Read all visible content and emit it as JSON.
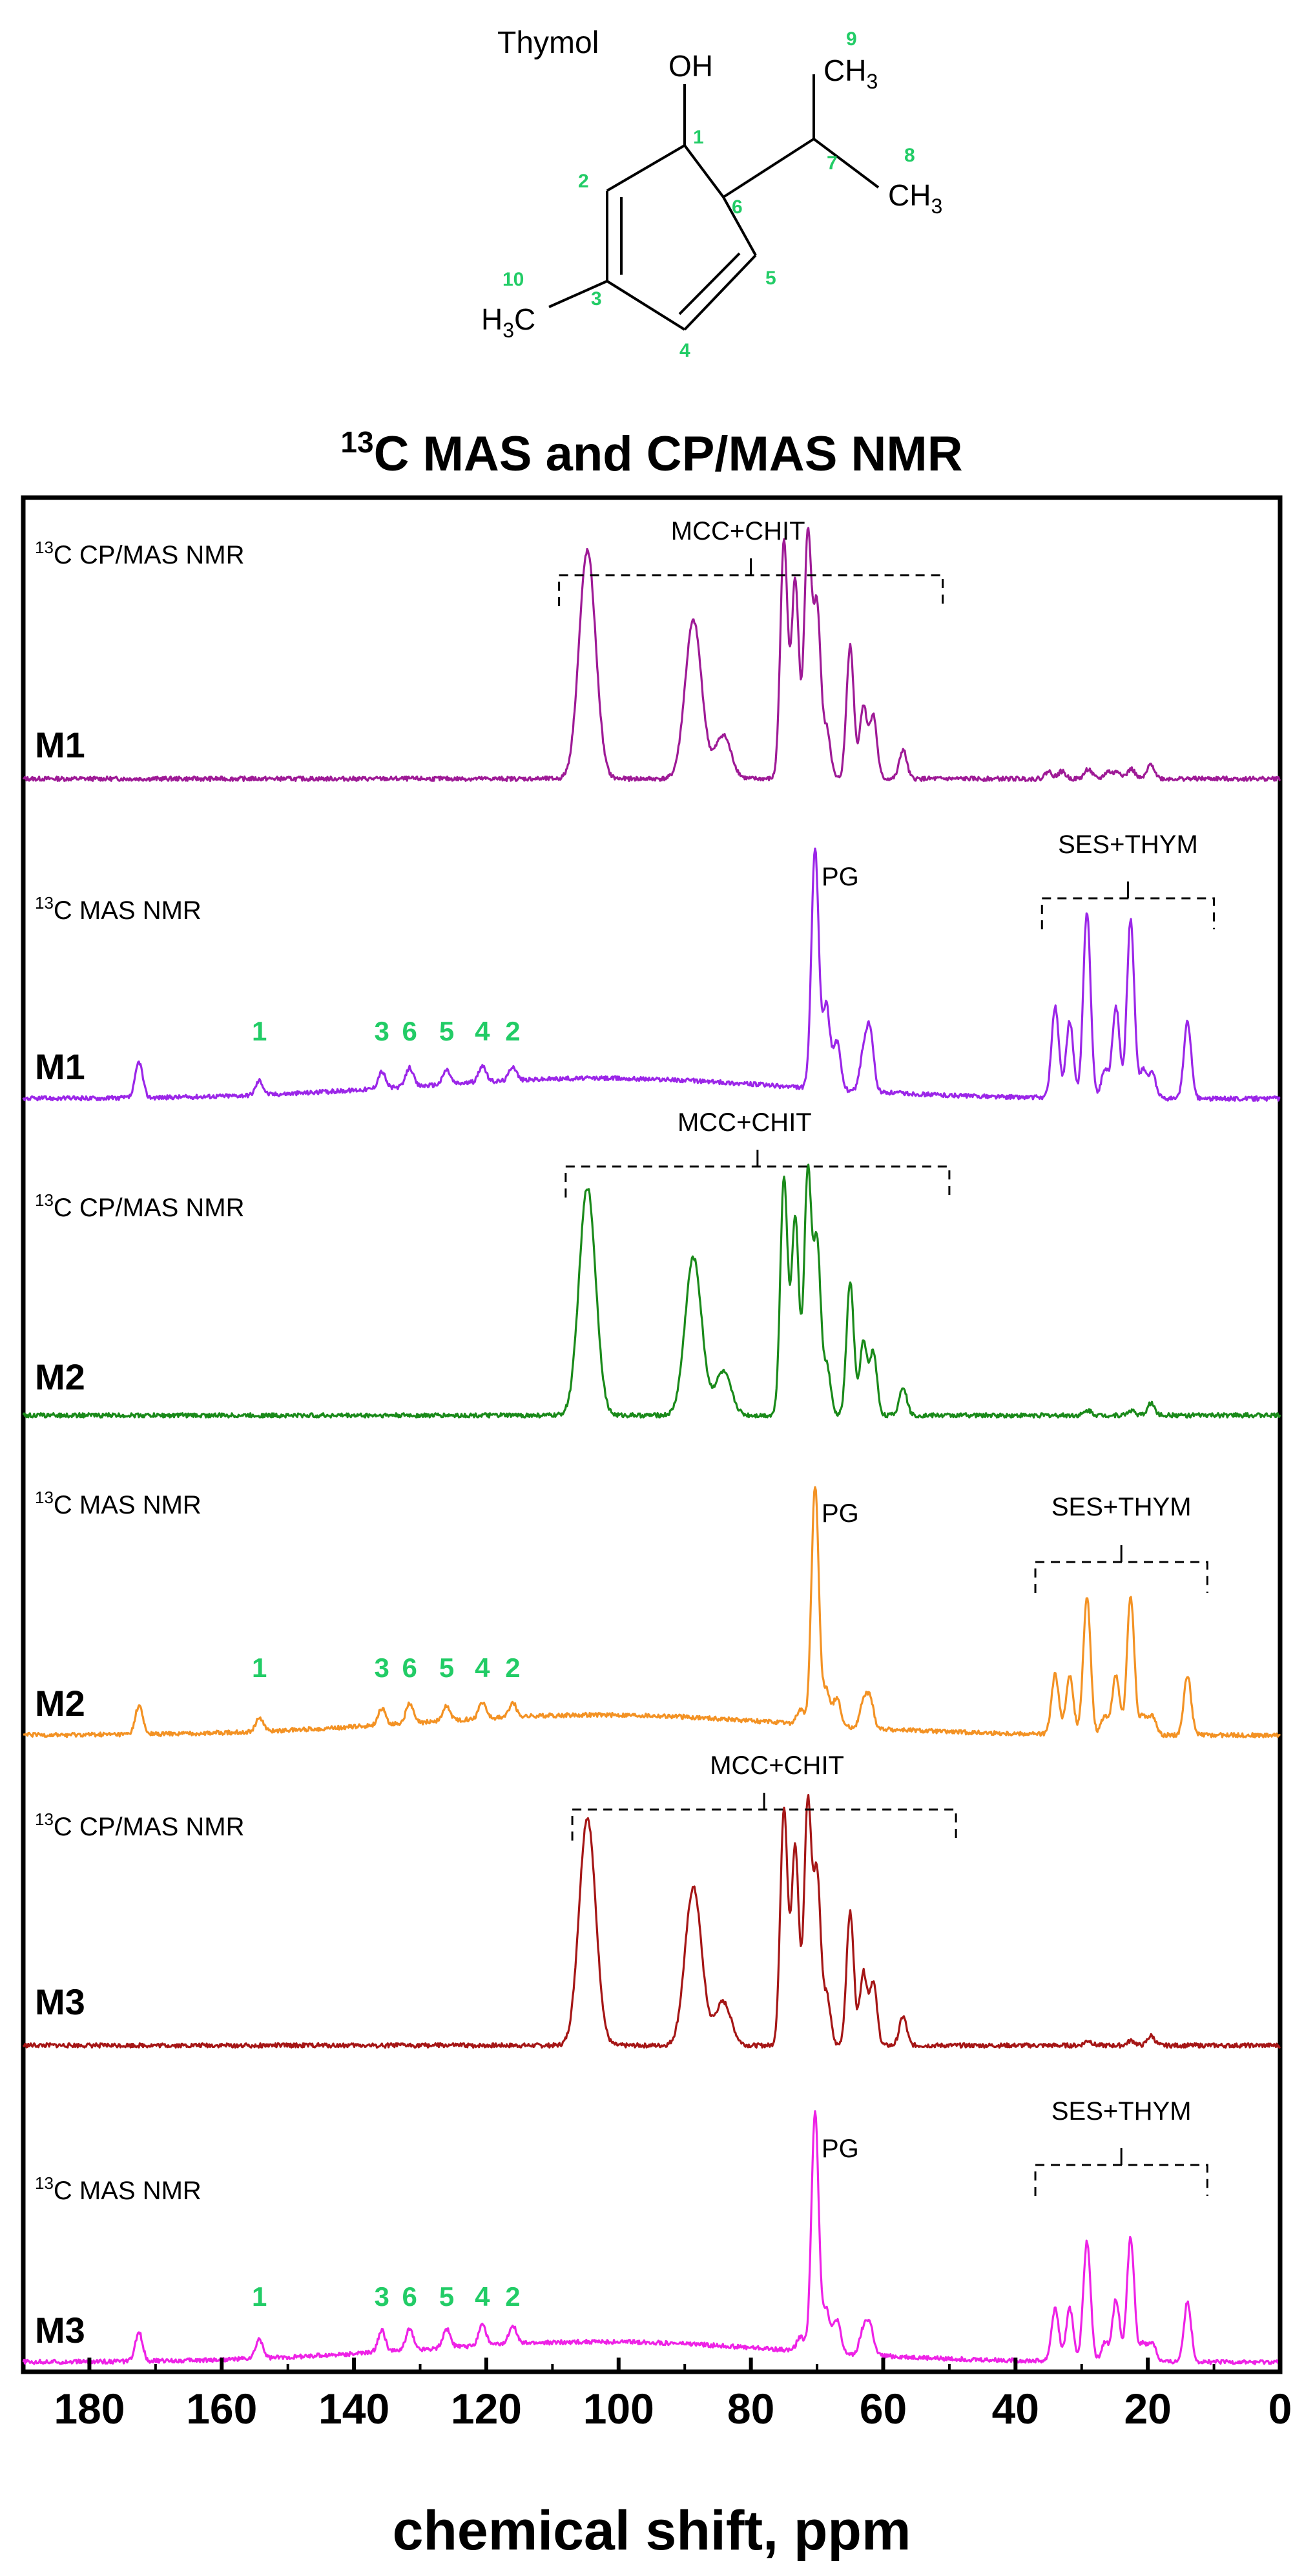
{
  "molecule": {
    "name": "Thymol",
    "oh_label": "OH",
    "ch3_label": "CH",
    "ch3_sub": "3",
    "h3c_main": "H",
    "h3c_sub": "3",
    "h3c_tail": "C",
    "atom_numbers": [
      "1",
      "2",
      "3",
      "4",
      "5",
      "6",
      "7",
      "8",
      "9",
      "10"
    ]
  },
  "title": {
    "sup": "13",
    "main": "C MAS and CP/MAS NMR"
  },
  "colors": {
    "M1_cp": "#9e1a96",
    "M1_mas": "#9b26e8",
    "M2_cp": "#1a8a1a",
    "M2_mas": "#f39224",
    "M3_cp": "#a51616",
    "M3_mas": "#ee22e6",
    "atom_label": "#22cc66"
  },
  "chart_data": {
    "type": "line",
    "title": "13C MAS and CP/MAS NMR",
    "xlabel": "chemical shift, ppm",
    "xlim": [
      190,
      0
    ],
    "x_reversed": true,
    "x_ticks": [
      180,
      160,
      140,
      120,
      100,
      80,
      60,
      40,
      20,
      0
    ],
    "x_tick_labels": [
      "180",
      "160",
      "140",
      "120",
      "100",
      "80",
      "60",
      "40",
      "20",
      "0"
    ],
    "panels": [
      {
        "id": "M1_cp",
        "sample": "M1",
        "method_sup": "13",
        "method": "C CP/MAS NMR",
        "bracket": {
          "label": "MCC+CHIT",
          "from": 109,
          "to": 51
        },
        "peaks": [
          [
            105.0,
            0.58
          ],
          [
            104.3,
            0.4
          ],
          [
            89.0,
            0.38
          ],
          [
            88.3,
            0.3
          ],
          [
            84.2,
            0.18
          ],
          [
            75.0,
            0.98
          ],
          [
            73.3,
            0.82
          ],
          [
            71.4,
            1.0
          ],
          [
            70.0,
            0.7
          ],
          [
            68.5,
            0.2
          ],
          [
            65.0,
            0.55
          ],
          [
            63.0,
            0.3
          ],
          [
            61.5,
            0.26
          ],
          [
            57.0,
            0.12
          ],
          [
            35.0,
            0.03
          ],
          [
            33.0,
            0.03
          ],
          [
            29.0,
            0.04
          ],
          [
            26.0,
            0.03
          ],
          [
            24.5,
            0.03
          ],
          [
            22.5,
            0.04
          ],
          [
            19.5,
            0.06
          ]
        ]
      },
      {
        "id": "M1_mas",
        "sample": "M1",
        "method_sup": "13",
        "method": "C MAS NMR",
        "bracket": {
          "label": "SES+THYM",
          "from": 36,
          "to": 10
        },
        "pg_label": "PG",
        "atom_labels": [
          {
            "num": "1",
            "ppm": 154.3
          },
          {
            "num": "3",
            "ppm": 135.8
          },
          {
            "num": "6",
            "ppm": 131.6
          },
          {
            "num": "5",
            "ppm": 126.0
          },
          {
            "num": "4",
            "ppm": 120.6
          },
          {
            "num": "2",
            "ppm": 116.0
          }
        ],
        "peaks": [
          [
            172.5,
            0.15
          ],
          [
            154.3,
            0.06
          ],
          [
            135.8,
            0.07
          ],
          [
            131.6,
            0.08
          ],
          [
            126.0,
            0.06
          ],
          [
            120.6,
            0.07
          ],
          [
            116.0,
            0.06
          ],
          [
            70.3,
            1.0
          ],
          [
            68.6,
            0.35
          ],
          [
            67.0,
            0.2
          ],
          [
            63.0,
            0.15
          ],
          [
            62.0,
            0.25
          ],
          [
            34.0,
            0.38
          ],
          [
            31.8,
            0.32
          ],
          [
            29.2,
            0.78
          ],
          [
            26.5,
            0.12
          ],
          [
            24.8,
            0.38
          ],
          [
            22.6,
            0.75
          ],
          [
            20.7,
            0.12
          ],
          [
            19.3,
            0.1
          ],
          [
            14.0,
            0.32
          ]
        ]
      },
      {
        "id": "M2_cp",
        "sample": "M2",
        "method_sup": "13",
        "method": "C CP/MAS NMR",
        "bracket": {
          "label": "MCC+CHIT",
          "from": 108,
          "to": 50
        },
        "peaks": [
          [
            105.0,
            0.58
          ],
          [
            104.3,
            0.4
          ],
          [
            89.0,
            0.38
          ],
          [
            88.3,
            0.3
          ],
          [
            84.2,
            0.18
          ],
          [
            75.0,
            0.98
          ],
          [
            73.3,
            0.82
          ],
          [
            71.4,
            1.0
          ],
          [
            70.0,
            0.7
          ],
          [
            68.5,
            0.2
          ],
          [
            65.0,
            0.55
          ],
          [
            63.0,
            0.3
          ],
          [
            61.5,
            0.26
          ],
          [
            57.0,
            0.12
          ],
          [
            29.0,
            0.02
          ],
          [
            22.5,
            0.02
          ],
          [
            19.5,
            0.05
          ]
        ]
      },
      {
        "id": "M2_mas",
        "sample": "M2",
        "method_sup": "13",
        "method": "C MAS NMR",
        "bracket": {
          "label": "SES+THYM",
          "from": 37,
          "to": 11
        },
        "pg_label": "PG",
        "atom_labels": [
          {
            "num": "1",
            "ppm": 154.3
          },
          {
            "num": "3",
            "ppm": 135.8
          },
          {
            "num": "6",
            "ppm": 131.6
          },
          {
            "num": "5",
            "ppm": 126.0
          },
          {
            "num": "4",
            "ppm": 120.6
          },
          {
            "num": "2",
            "ppm": 116.0
          }
        ],
        "peaks": [
          [
            172.5,
            0.12
          ],
          [
            154.3,
            0.06
          ],
          [
            135.8,
            0.07
          ],
          [
            131.6,
            0.08
          ],
          [
            126.0,
            0.06
          ],
          [
            120.6,
            0.07
          ],
          [
            116.0,
            0.06
          ],
          [
            72.5,
            0.06
          ],
          [
            70.3,
            1.0
          ],
          [
            68.6,
            0.15
          ],
          [
            67.0,
            0.12
          ],
          [
            63.0,
            0.1
          ],
          [
            62.0,
            0.12
          ],
          [
            34.0,
            0.25
          ],
          [
            31.8,
            0.25
          ],
          [
            29.2,
            0.58
          ],
          [
            26.5,
            0.08
          ],
          [
            24.8,
            0.25
          ],
          [
            22.6,
            0.58
          ],
          [
            20.7,
            0.08
          ],
          [
            19.3,
            0.08
          ],
          [
            14.0,
            0.25
          ]
        ]
      },
      {
        "id": "M3_cp",
        "sample": "M3",
        "method_sup": "13",
        "method": "C CP/MAS NMR",
        "bracket": {
          "label": "MCC+CHIT",
          "from": 107,
          "to": 49
        },
        "peaks": [
          [
            105.0,
            0.58
          ],
          [
            104.3,
            0.4
          ],
          [
            89.0,
            0.38
          ],
          [
            88.3,
            0.3
          ],
          [
            84.2,
            0.18
          ],
          [
            75.0,
            0.98
          ],
          [
            73.3,
            0.82
          ],
          [
            71.4,
            1.0
          ],
          [
            70.0,
            0.7
          ],
          [
            68.5,
            0.2
          ],
          [
            65.0,
            0.55
          ],
          [
            63.0,
            0.3
          ],
          [
            61.5,
            0.26
          ],
          [
            57.0,
            0.12
          ],
          [
            29.0,
            0.02
          ],
          [
            22.5,
            0.02
          ],
          [
            19.5,
            0.04
          ]
        ]
      },
      {
        "id": "M3_mas",
        "sample": "M3",
        "method_sup": "13",
        "method": "C MAS NMR",
        "bracket": {
          "label": "SES+THYM",
          "from": 37,
          "to": 11
        },
        "pg_label": "PG",
        "atom_labels": [
          {
            "num": "1",
            "ppm": 154.3
          },
          {
            "num": "3",
            "ppm": 135.8
          },
          {
            "num": "6",
            "ppm": 131.6
          },
          {
            "num": "5",
            "ppm": 126.0
          },
          {
            "num": "4",
            "ppm": 120.6
          },
          {
            "num": "2",
            "ppm": 116.0
          }
        ],
        "peaks": [
          [
            172.5,
            0.12
          ],
          [
            154.3,
            0.08
          ],
          [
            135.8,
            0.09
          ],
          [
            131.6,
            0.09
          ],
          [
            126.0,
            0.08
          ],
          [
            120.6,
            0.09
          ],
          [
            116.0,
            0.08
          ],
          [
            72.5,
            0.06
          ],
          [
            70.3,
            1.0
          ],
          [
            68.6,
            0.18
          ],
          [
            67.0,
            0.14
          ],
          [
            63.0,
            0.1
          ],
          [
            62.0,
            0.12
          ],
          [
            34.0,
            0.22
          ],
          [
            31.8,
            0.22
          ],
          [
            29.2,
            0.5
          ],
          [
            26.5,
            0.08
          ],
          [
            24.8,
            0.26
          ],
          [
            22.6,
            0.52
          ],
          [
            20.7,
            0.08
          ],
          [
            19.3,
            0.08
          ],
          [
            14.0,
            0.25
          ]
        ]
      }
    ]
  }
}
